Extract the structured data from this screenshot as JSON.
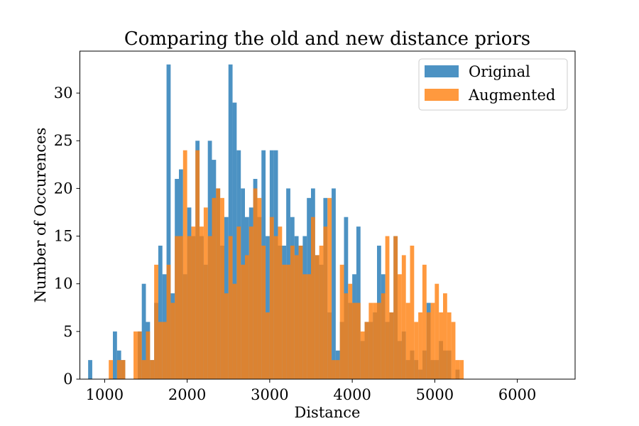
{
  "chart_data": {
    "type": "bar",
    "title": "Comparing the old and new distance priors",
    "xlabel": "Distance",
    "ylabel": "Number of Occurences",
    "x_range": [
      700,
      6700
    ],
    "y_range": [
      0,
      34.4
    ],
    "x_ticks": [
      1000,
      2000,
      3000,
      4000,
      5000,
      6000
    ],
    "y_ticks": [
      0,
      5,
      10,
      15,
      20,
      25,
      30
    ],
    "grid": false,
    "legend_position": "top-right",
    "bin_start": 800,
    "bin_width": 50,
    "series": [
      {
        "name": "Original",
        "color": "#1f77b4",
        "opacity": 0.8,
        "values": [
          2,
          0,
          0,
          0,
          0,
          0,
          5,
          3,
          2,
          0,
          0,
          0,
          5,
          10,
          6,
          2,
          8,
          14,
          11,
          33,
          9,
          21,
          22,
          11,
          18,
          15,
          25,
          15,
          12,
          25,
          23,
          20,
          14,
          17,
          33,
          29,
          24,
          20,
          17,
          18,
          21,
          17,
          24,
          15,
          24,
          24,
          14,
          14,
          20,
          17,
          15,
          14,
          15,
          19,
          20,
          13,
          12,
          19,
          7,
          20,
          3,
          6,
          17,
          8,
          11,
          16,
          4,
          6,
          6,
          7,
          14,
          11,
          6,
          7,
          15,
          4,
          5,
          2,
          3,
          2,
          1,
          3,
          8,
          2,
          2,
          4,
          3,
          3,
          0,
          1,
          0
        ]
      },
      {
        "name": "Augmented",
        "color": "#ff7f0e",
        "opacity": 0.8,
        "values": [
          0,
          0,
          0,
          0,
          0,
          2,
          0,
          2,
          2,
          0,
          0,
          5,
          5,
          2,
          5,
          2,
          12,
          6,
          6,
          12,
          8,
          15,
          15,
          24,
          15,
          16,
          24,
          16,
          18,
          15,
          19,
          20,
          19,
          9,
          15,
          10,
          16,
          12,
          13,
          16,
          20,
          19,
          14,
          7,
          17,
          15,
          16,
          12,
          12,
          14,
          13,
          14,
          11,
          11,
          17,
          13,
          14,
          16,
          19,
          2,
          2,
          12,
          9,
          10,
          8,
          8,
          5,
          6,
          8,
          8,
          8,
          9,
          15,
          7,
          15,
          11,
          13,
          8,
          14,
          6,
          7,
          12,
          7,
          8,
          10,
          7,
          9,
          7,
          6,
          2,
          2,
          0
        ]
      }
    ]
  }
}
